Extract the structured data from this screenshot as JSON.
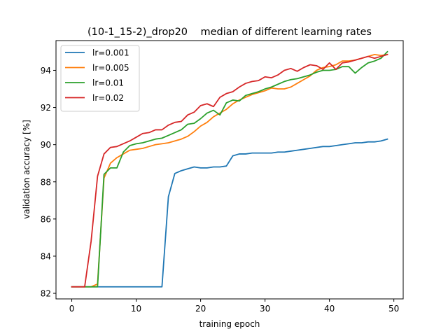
{
  "chart_data": {
    "type": "line",
    "title": "(10-1_15-2)_drop20    median of different learning rates",
    "xlabel": "training epoch",
    "ylabel": "validation accuracy [%]",
    "xlim": [
      -2.45,
      51.45
    ],
    "ylim": [
      81.7,
      95.6
    ],
    "xticks": [
      0,
      10,
      20,
      30,
      40,
      50
    ],
    "yticks": [
      82,
      84,
      86,
      88,
      90,
      92,
      94
    ],
    "grid": false,
    "legend_position": "top-left",
    "x": [
      0,
      1,
      2,
      3,
      4,
      5,
      6,
      7,
      8,
      9,
      10,
      11,
      12,
      13,
      14,
      15,
      16,
      17,
      18,
      19,
      20,
      21,
      22,
      23,
      24,
      25,
      26,
      27,
      28,
      29,
      30,
      31,
      32,
      33,
      34,
      35,
      36,
      37,
      38,
      39,
      40,
      41,
      42,
      43,
      44,
      45,
      46,
      47,
      48,
      49
    ],
    "series": [
      {
        "name": "lr=0.001",
        "color": "#1f77b4",
        "values": [
          82.35,
          82.35,
          82.35,
          82.35,
          82.35,
          82.35,
          82.35,
          82.35,
          82.35,
          82.35,
          82.35,
          82.35,
          82.35,
          82.35,
          82.35,
          87.2,
          88.45,
          88.6,
          88.7,
          88.8,
          88.75,
          88.75,
          88.8,
          88.8,
          88.85,
          89.4,
          89.5,
          89.5,
          89.55,
          89.55,
          89.55,
          89.55,
          89.6,
          89.6,
          89.65,
          89.7,
          89.75,
          89.8,
          89.85,
          89.9,
          89.9,
          89.95,
          90.0,
          90.05,
          90.1,
          90.1,
          90.15,
          90.15,
          90.2,
          90.3
        ]
      },
      {
        "name": "lr=0.005",
        "color": "#ff7f0e",
        "values": [
          82.35,
          82.35,
          82.35,
          82.35,
          82.5,
          88.2,
          89.0,
          89.3,
          89.5,
          89.7,
          89.75,
          89.8,
          89.9,
          90.0,
          90.05,
          90.1,
          90.2,
          90.3,
          90.45,
          90.7,
          91.0,
          91.2,
          91.5,
          91.7,
          91.9,
          92.2,
          92.4,
          92.55,
          92.7,
          92.8,
          92.9,
          93.05,
          93.0,
          93.0,
          93.1,
          93.3,
          93.5,
          93.7,
          94.0,
          94.15,
          94.2,
          94.3,
          94.5,
          94.5,
          94.55,
          94.65,
          94.75,
          94.85,
          94.8,
          94.85
        ]
      },
      {
        "name": "lr=0.01",
        "color": "#2ca02c",
        "values": [
          82.35,
          82.35,
          82.35,
          82.35,
          82.35,
          88.4,
          88.75,
          88.75,
          89.6,
          89.95,
          90.05,
          90.1,
          90.2,
          90.3,
          90.35,
          90.5,
          90.65,
          90.8,
          91.1,
          91.15,
          91.4,
          91.7,
          91.85,
          91.6,
          92.25,
          92.4,
          92.35,
          92.65,
          92.75,
          92.85,
          93.0,
          93.1,
          93.25,
          93.4,
          93.5,
          93.55,
          93.65,
          93.75,
          93.9,
          94.0,
          94.0,
          94.05,
          94.2,
          94.2,
          93.85,
          94.15,
          94.4,
          94.5,
          94.65,
          95.0
        ]
      },
      {
        "name": "lr=0.02",
        "color": "#d62728",
        "values": [
          82.35,
          82.35,
          82.35,
          84.8,
          88.3,
          89.5,
          89.85,
          89.9,
          90.05,
          90.2,
          90.4,
          90.6,
          90.65,
          90.8,
          90.8,
          91.05,
          91.2,
          91.25,
          91.6,
          91.75,
          92.1,
          92.2,
          92.05,
          92.55,
          92.75,
          92.85,
          93.1,
          93.3,
          93.4,
          93.45,
          93.65,
          93.6,
          93.75,
          94.0,
          94.1,
          93.95,
          94.15,
          94.3,
          94.25,
          94.05,
          94.4,
          94.05,
          94.4,
          94.45,
          94.55,
          94.65,
          94.75,
          94.65,
          94.75,
          94.85
        ]
      }
    ]
  }
}
